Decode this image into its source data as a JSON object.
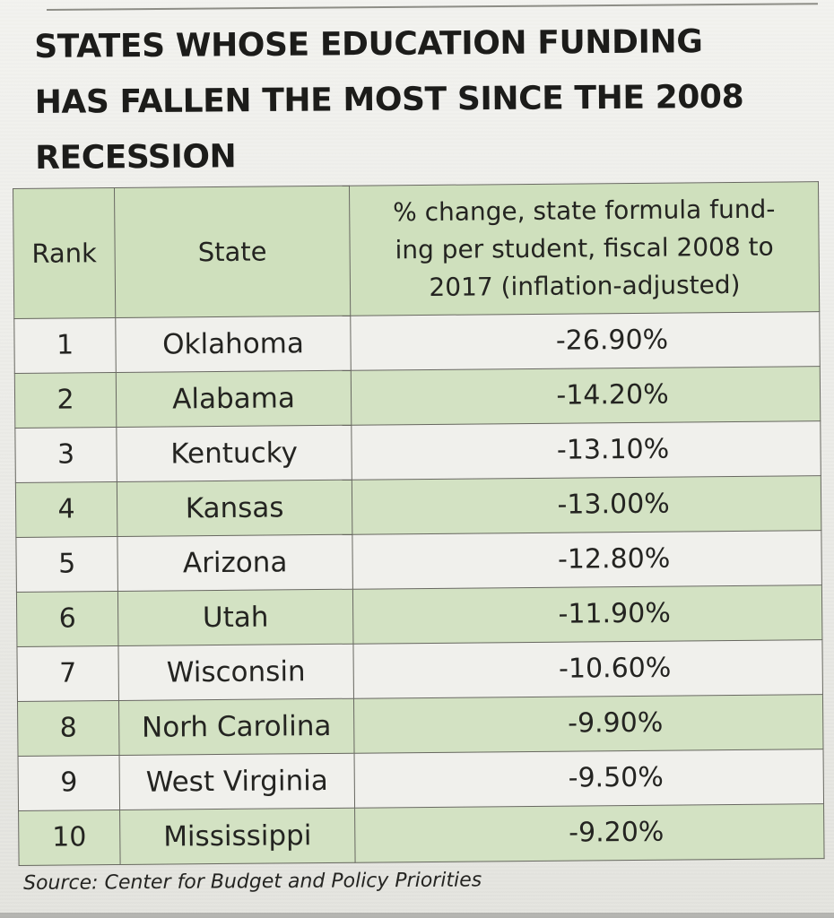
{
  "title": {
    "lines": [
      "STATES WHOSE EDUCATION FUNDING",
      "HAS FALLEN THE MOST SINCE THE 2008",
      "RECESSION"
    ]
  },
  "table": {
    "headers": {
      "rank": "Rank",
      "state": "State",
      "change_lines": [
        "% change, state formula fund-",
        "ing per student, fiscal 2008 to",
        "2017 (inflation-adjusted)"
      ]
    },
    "rows": [
      {
        "rank": "1",
        "state": "Oklahoma",
        "change": "-26.90%"
      },
      {
        "rank": "2",
        "state": "Alabama",
        "change": "-14.20%"
      },
      {
        "rank": "3",
        "state": "Kentucky",
        "change": "-13.10%"
      },
      {
        "rank": "4",
        "state": "Kansas",
        "change": "-13.00%"
      },
      {
        "rank": "5",
        "state": "Arizona",
        "change": "-12.80%"
      },
      {
        "rank": "6",
        "state": "Utah",
        "change": "-11.90%"
      },
      {
        "rank": "7",
        "state": "Wisconsin",
        "change": "-10.60%"
      },
      {
        "rank": "8",
        "state": "Norh Carolina",
        "change": "-9.90%"
      },
      {
        "rank": "9",
        "state": "West Virginia",
        "change": "-9.50%"
      },
      {
        "rank": "10",
        "state": "Mississippi",
        "change": "-9.20%"
      }
    ]
  },
  "source": "Source: Center for Budget and Policy Priorities",
  "colors": {
    "header_fill": "#cfe0bd",
    "even_row_fill": "#d3e2c3",
    "odd_row_fill": "#f0f0ec",
    "text": "#242421"
  }
}
